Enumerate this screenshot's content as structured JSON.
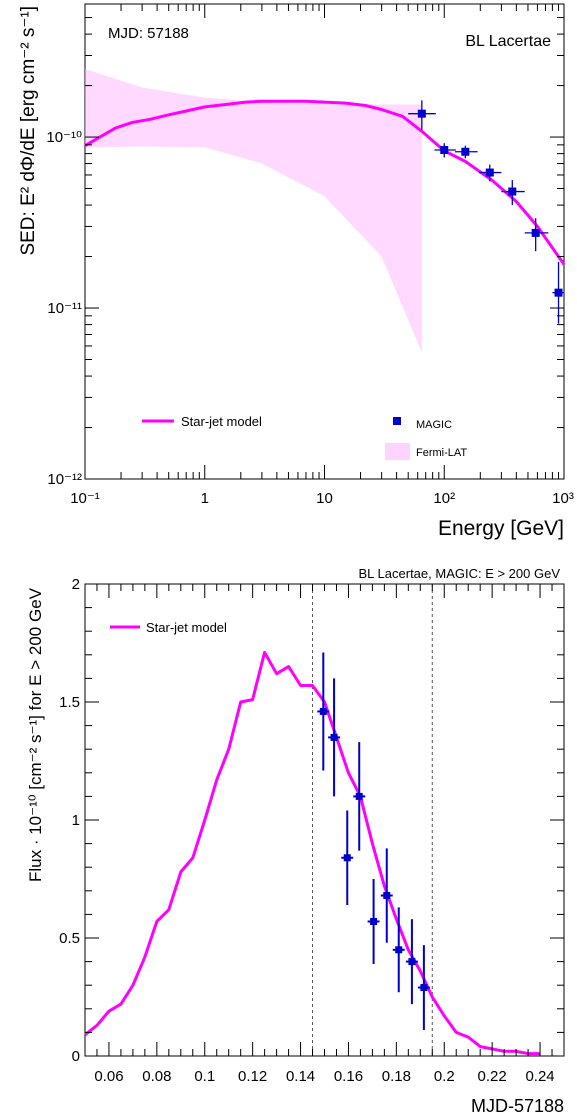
{
  "chart_data": [
    {
      "type": "scatter",
      "x_scale": "log",
      "y_scale": "log",
      "xlim": [
        0.1,
        1000
      ],
      "ylim": [
        1e-12,
        6e-10
      ],
      "xlabel": "Energy [GeV]",
      "ylabel": "SED: E² dΦ/dE [erg cm⁻² s⁻¹]",
      "x_tick_labels": [
        "10⁻¹",
        "1",
        "10",
        "10²",
        "10³"
      ],
      "y_tick_labels": [
        "10⁻¹²",
        "10⁻¹¹",
        "10⁻¹⁰"
      ],
      "annotations": {
        "left": "MJD: 57188",
        "right": "BL Lacertae"
      },
      "legend": {
        "model": "Star-jet model",
        "points": "MAGIC",
        "band": "Fermi-LAT"
      },
      "colors": {
        "model": "#ff00ff",
        "points": "#0000cc",
        "band": "#ffb3ff"
      },
      "series": [
        {
          "name": "Star-jet model",
          "x": [
            0.1,
            0.13,
            0.18,
            0.25,
            0.35,
            0.5,
            0.7,
            1,
            1.5,
            2.2,
            3,
            5,
            7,
            10,
            15,
            22,
            30,
            45,
            65,
            100,
            150,
            250,
            400,
            600,
            1000
          ],
          "y": [
            8.9e-11,
            9.9e-11,
            1.13e-10,
            1.22e-10,
            1.27e-10,
            1.35e-10,
            1.42e-10,
            1.5e-10,
            1.55e-10,
            1.6e-10,
            1.62e-10,
            1.62e-10,
            1.62e-10,
            1.6e-10,
            1.58e-10,
            1.53e-10,
            1.45e-10,
            1.32e-10,
            1.08e-10,
            8.3e-11,
            7.2e-11,
            5.6e-11,
            4.2e-11,
            3e-11,
            1.8e-11
          ]
        },
        {
          "name": "MAGIC",
          "x": [
            65,
            100,
            150,
            240,
            370,
            580,
            900
          ],
          "y": [
            1.37e-10,
            8.4e-11,
            8.2e-11,
            6.2e-11,
            4.8e-11,
            2.75e-11,
            1.23e-11
          ],
          "y_err_low": [
            2.7e-11,
            8e-12,
            7e-12,
            7e-12,
            8e-12,
            6e-12,
            4.2e-12
          ],
          "y_err_high": [
            2.7e-11,
            8e-12,
            7e-12,
            7e-12,
            8e-12,
            6e-12,
            6.3e-12
          ],
          "x_err_low": [
            15,
            17,
            27,
            45,
            70,
            110,
            100
          ],
          "x_err_high": [
            20,
            25,
            40,
            60,
            100,
            160,
            100
          ]
        },
        {
          "name": "Fermi-LAT",
          "x": [
            0.1,
            0.3,
            1,
            3,
            10,
            30,
            65
          ],
          "upper": [
            2.5e-10,
            1.95e-10,
            1.7e-10,
            1.6e-10,
            1.57e-10,
            1.55e-10,
            1.55e-10
          ],
          "lower": [
            8.7e-11,
            8.8e-11,
            8.7e-11,
            7e-11,
            4.5e-11,
            2e-11,
            5.5e-12
          ]
        }
      ]
    },
    {
      "type": "line",
      "xlim": [
        0.05,
        0.25
      ],
      "ylim": [
        0,
        2
      ],
      "xlabel": "MJD-57188",
      "ylabel": "Flux · 10⁻¹⁰ [cm⁻² s⁻¹] for E > 200 GeV",
      "title": "BL Lacertae, MAGIC: E > 200 GeV",
      "x_ticks": [
        0.06,
        0.08,
        0.1,
        0.12,
        0.14,
        0.16,
        0.18,
        0.2,
        0.22,
        0.24
      ],
      "x_tick_labels": [
        "0.06",
        "0.08",
        "0.1",
        "0.12",
        "0.14",
        "0.16",
        "0.18",
        "0.2",
        "0.22",
        "0.24"
      ],
      "y_ticks": [
        0,
        0.5,
        1,
        1.5,
        2
      ],
      "y_tick_labels": [
        "0",
        "0.5",
        "1",
        "1.5",
        "2"
      ],
      "vertical_lines": [
        0.145,
        0.195
      ],
      "legend": {
        "model": "Star-jet model"
      },
      "colors": {
        "model": "#ff00ff",
        "points": "#0000cc",
        "vlines": "#555555"
      },
      "series": [
        {
          "name": "Star-jet model",
          "x": [
            0.05,
            0.055,
            0.06,
            0.065,
            0.07,
            0.075,
            0.08,
            0.085,
            0.09,
            0.095,
            0.1,
            0.105,
            0.11,
            0.115,
            0.12,
            0.125,
            0.13,
            0.135,
            0.14,
            0.145,
            0.15,
            0.155,
            0.16,
            0.165,
            0.17,
            0.175,
            0.18,
            0.185,
            0.19,
            0.195,
            0.2,
            0.205,
            0.21,
            0.215,
            0.22,
            0.225,
            0.23,
            0.235,
            0.24
          ],
          "y": [
            0.09,
            0.13,
            0.19,
            0.22,
            0.3,
            0.42,
            0.57,
            0.62,
            0.78,
            0.84,
            1.0,
            1.17,
            1.3,
            1.5,
            1.51,
            1.71,
            1.62,
            1.65,
            1.57,
            1.57,
            1.5,
            1.35,
            1.2,
            1.1,
            0.9,
            0.72,
            0.58,
            0.45,
            0.36,
            0.25,
            0.17,
            0.1,
            0.08,
            0.04,
            0.03,
            0.02,
            0.02,
            0.01,
            0.01
          ]
        },
        {
          "name": "MAGIC",
          "x": [
            0.1495,
            0.154,
            0.1595,
            0.1645,
            0.1705,
            0.176,
            0.181,
            0.1865,
            0.1915
          ],
          "y": [
            1.46,
            1.35,
            0.84,
            1.1,
            0.57,
            0.68,
            0.45,
            0.4,
            0.29
          ],
          "y_err": [
            0.25,
            0.25,
            0.2,
            0.23,
            0.18,
            0.2,
            0.18,
            0.18,
            0.18
          ],
          "x_err": [
            0.0025,
            0.0025,
            0.0025,
            0.0025,
            0.0025,
            0.0025,
            0.0025,
            0.0025,
            0.0025
          ]
        }
      ]
    }
  ]
}
